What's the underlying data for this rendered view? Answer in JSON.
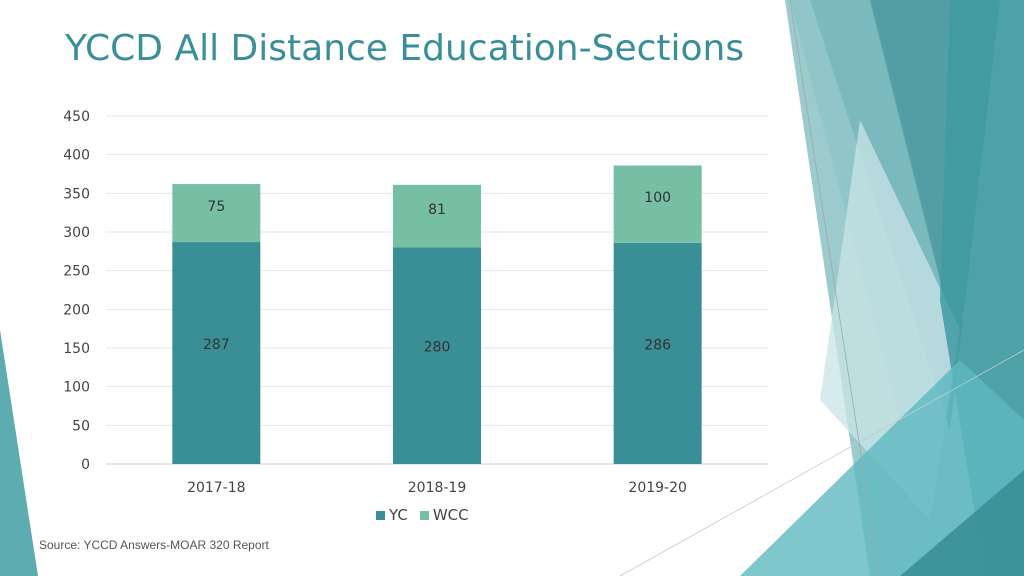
{
  "title": "YCCD All Distance Education-Sections",
  "source": "Source: YCCD Answers-MOAR 320 Report",
  "colors": {
    "yc": "#3a8f96",
    "wcc": "#76bfa5",
    "accent": "#3a8f96"
  },
  "chart_data": {
    "type": "bar",
    "stacked": true,
    "categories": [
      "2017-18",
      "2018-19",
      "2019-20"
    ],
    "series": [
      {
        "name": "YC",
        "values": [
          287,
          280,
          286
        ]
      },
      {
        "name": "WCC",
        "values": [
          75,
          81,
          100
        ]
      }
    ],
    "ylim": [
      0,
      450
    ],
    "yticks": [
      "0",
      "50",
      "100",
      "150",
      "200",
      "250",
      "300",
      "350",
      "400",
      "450"
    ],
    "grid": true,
    "legend": "bottom"
  }
}
